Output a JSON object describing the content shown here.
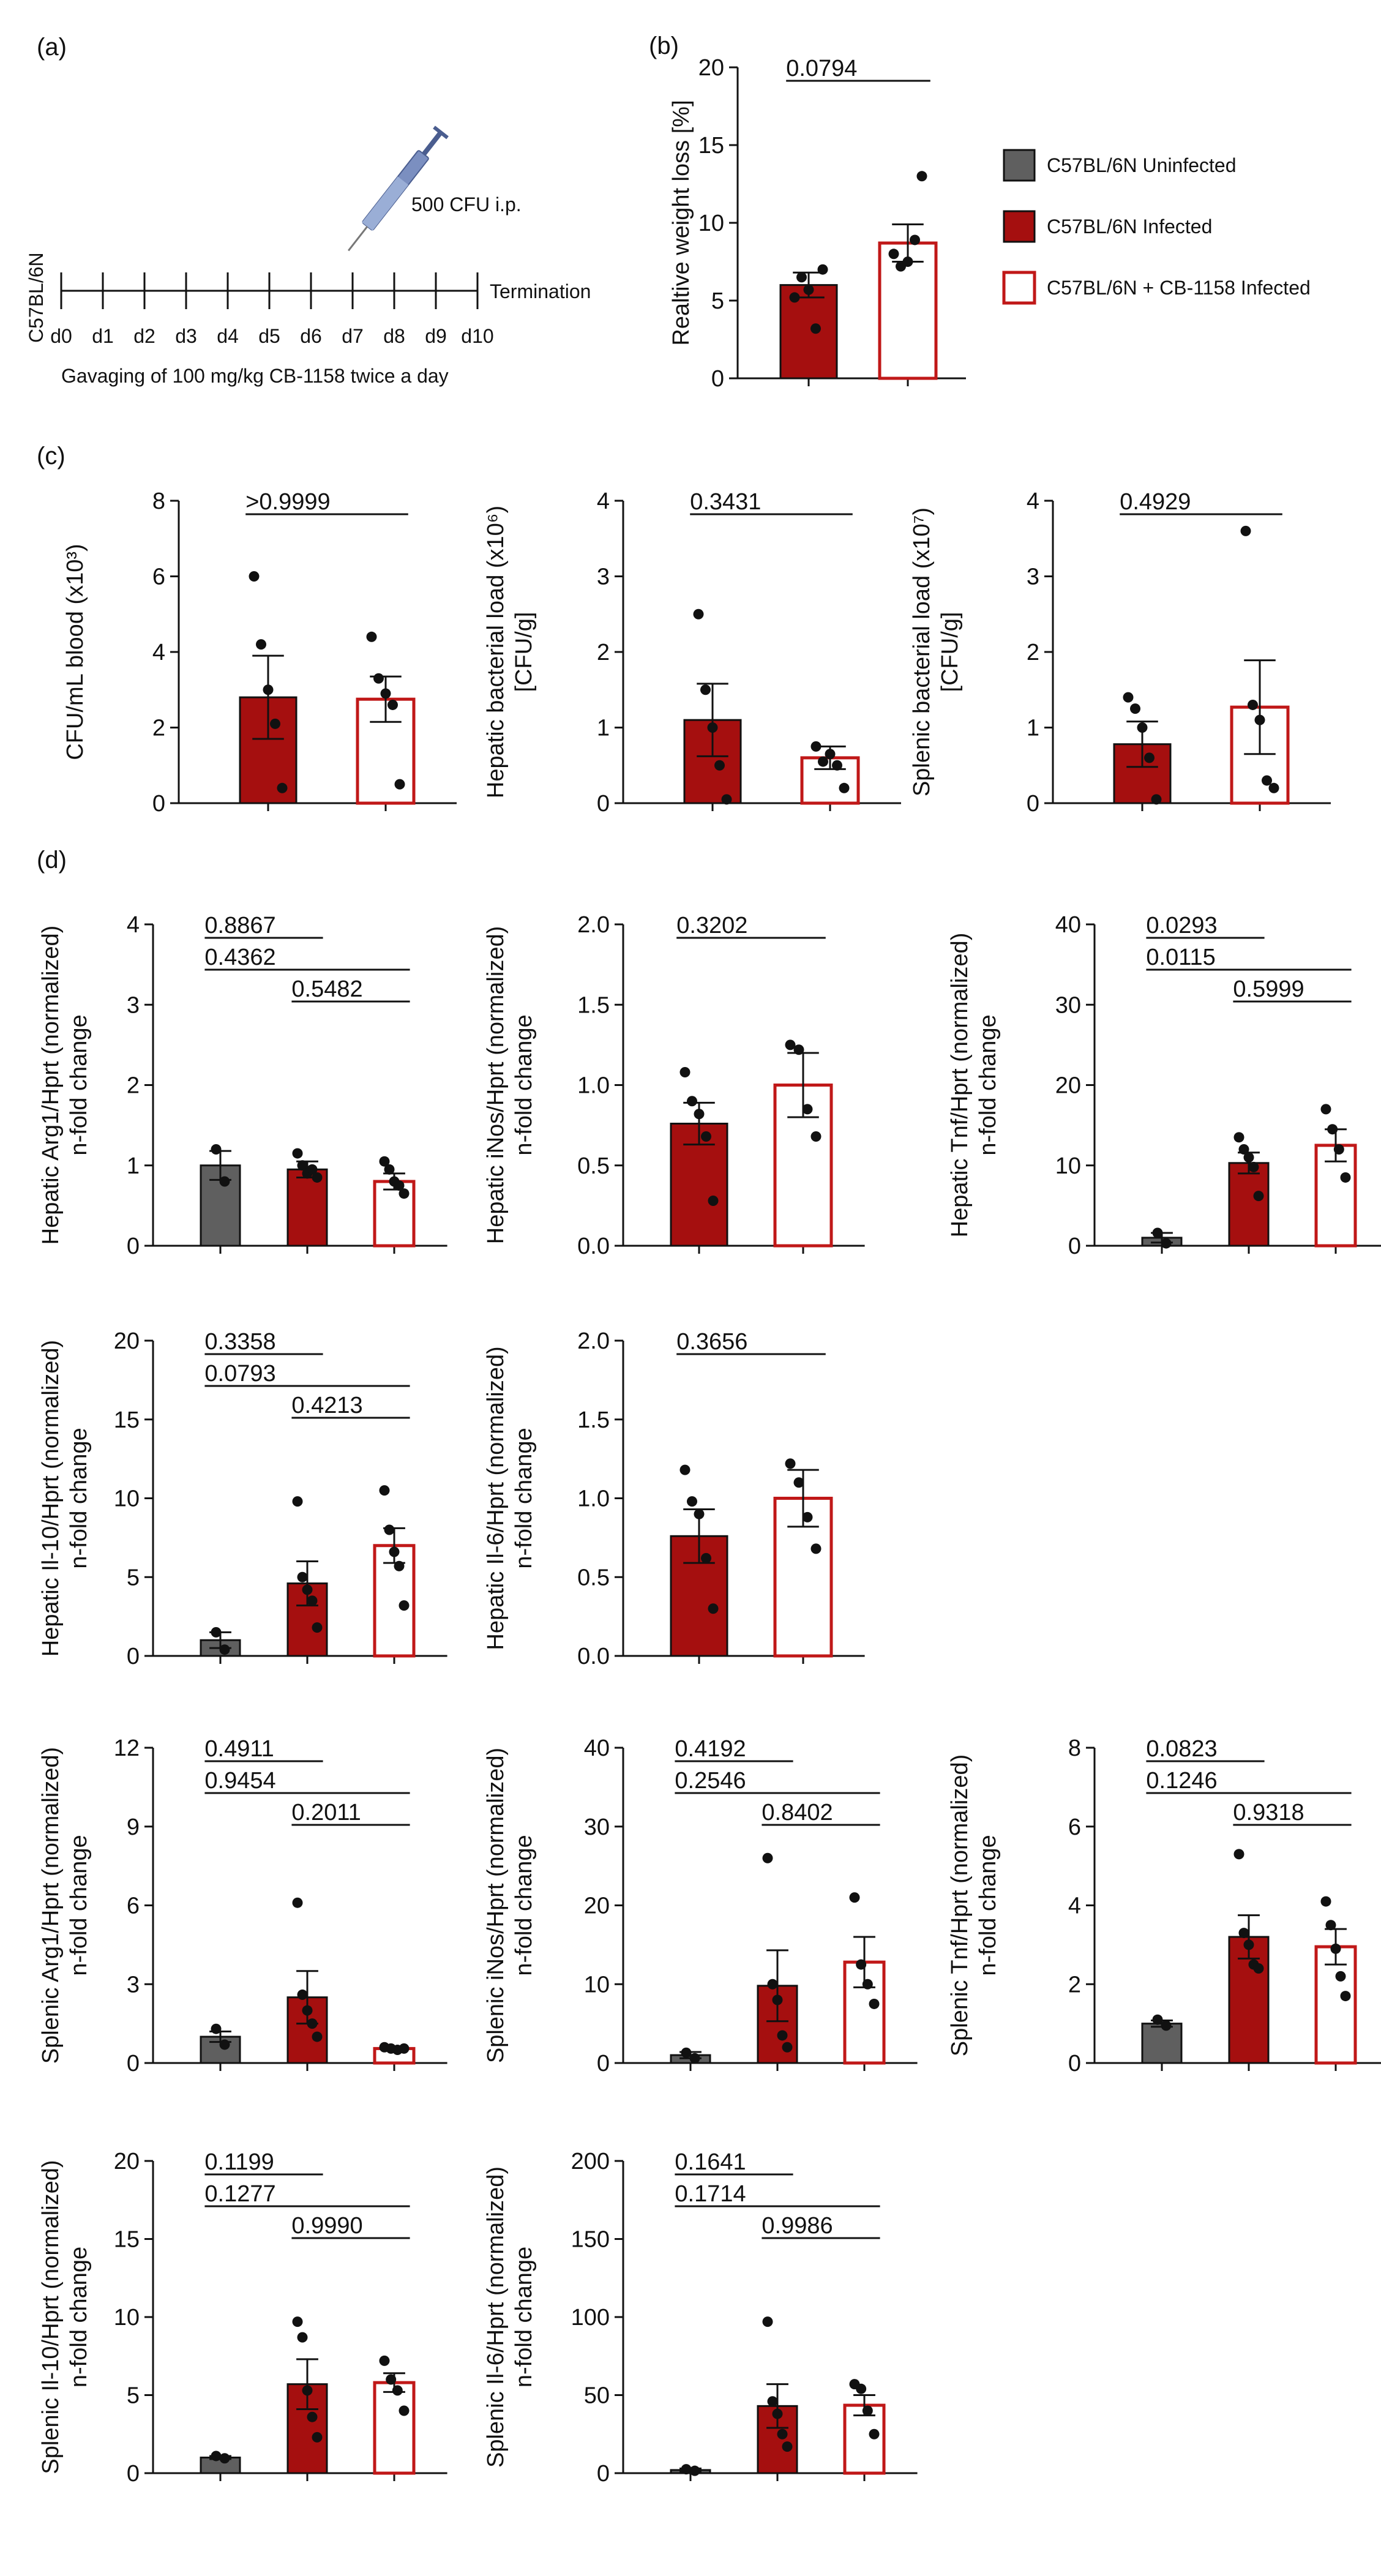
{
  "colors": {
    "uninfected": "#5f5f5f",
    "infected": "#a50f0f",
    "cb1158_edge": "#c01818",
    "axis": "#111111",
    "syringe": "#6a7fb0"
  },
  "legend": [
    {
      "label": "C57BL/6N Uninfected",
      "style": "uninfected"
    },
    {
      "label": "C57BL/6N Infected",
      "style": "infected"
    },
    {
      "label": "C57BL/6N + CB-1158 Infected",
      "style": "cb1158"
    }
  ],
  "timeline": {
    "panel_label": "(a)",
    "strain": "C57BL/6N",
    "days": [
      "d0",
      "d1",
      "d2",
      "d3",
      "d4",
      "d5",
      "d6",
      "d7",
      "d8",
      "d9",
      "d10"
    ],
    "injection": "500 CFU i.p.",
    "end_label": "Termination",
    "treatment": "Gavaging of 100 mg/kg  CB-1158 twice a day",
    "syringe_icon": "syringe-icon"
  },
  "chart_data": [
    {
      "id": "b",
      "panel_label": "(b)",
      "type": "bar",
      "ylabel": [
        "Realtive weight loss [%]"
      ],
      "ylim": [
        0,
        20
      ],
      "yticks": [
        "0",
        "5",
        "10",
        "15",
        "20"
      ],
      "groups": [
        "infected",
        "cb1158"
      ],
      "means": [
        6.0,
        8.7
      ],
      "sems": [
        0.8,
        1.2
      ],
      "points": [
        [
          5.2,
          6.5,
          5.7,
          3.2,
          7.0
        ],
        [
          8.0,
          7.2,
          7.5,
          8.9,
          13.0
        ]
      ],
      "comparisons": [
        {
          "text": "0.0794",
          "from": 0,
          "to": 1,
          "row": 0
        }
      ]
    },
    {
      "id": "c1",
      "panel_label": "(c)",
      "type": "bar",
      "ylabel": [
        "CFU/mL blood  (x10³)"
      ],
      "ylim": [
        0,
        8
      ],
      "yticks": [
        "0",
        "2",
        "4",
        "6",
        "8"
      ],
      "groups": [
        "infected",
        "cb1158"
      ],
      "means": [
        2.8,
        2.75
      ],
      "sems": [
        1.1,
        0.6
      ],
      "points": [
        [
          6.0,
          4.2,
          3.0,
          2.1,
          0.4
        ],
        [
          4.4,
          3.3,
          2.9,
          2.6,
          0.5
        ]
      ],
      "comparisons": [
        {
          "text": ">0.9999",
          "from": 0,
          "to": 1,
          "row": 0
        }
      ]
    },
    {
      "id": "c2",
      "type": "bar",
      "ylabel": [
        "Hepatic bacterial load (x10⁶)",
        "[CFU/g]"
      ],
      "ylim": [
        0,
        4
      ],
      "yticks": [
        "0",
        "1",
        "2",
        "3",
        "4"
      ],
      "groups": [
        "infected",
        "cb1158"
      ],
      "means": [
        1.1,
        0.6
      ],
      "sems": [
        0.48,
        0.15
      ],
      "points": [
        [
          2.5,
          1.5,
          1.0,
          0.5,
          0.05
        ],
        [
          0.75,
          0.55,
          0.65,
          0.5,
          0.2
        ]
      ],
      "comparisons": [
        {
          "text": "0.3431",
          "from": 0,
          "to": 1,
          "row": 0
        }
      ]
    },
    {
      "id": "c3",
      "type": "bar",
      "ylabel": [
        "Splenic bacterial load (x10⁷)",
        "[CFU/g]"
      ],
      "ylim": [
        0,
        4
      ],
      "yticks": [
        "0",
        "1",
        "2",
        "3",
        "4"
      ],
      "groups": [
        "infected",
        "cb1158"
      ],
      "means": [
        0.78,
        1.27
      ],
      "sems": [
        0.3,
        0.62
      ],
      "points": [
        [
          1.4,
          1.25,
          1.0,
          0.6,
          0.05
        ],
        [
          3.6,
          1.3,
          1.1,
          0.3,
          0.2
        ]
      ],
      "comparisons": [
        {
          "text": "0.4929",
          "from": 0,
          "to": 1,
          "row": 0
        }
      ]
    },
    {
      "id": "d1",
      "panel_label": "(d)",
      "type": "bar",
      "ylabel": [
        "Hepatic Arg1/Hprt (normalized)",
        "n-fold change"
      ],
      "ylim": [
        0,
        4
      ],
      "yticks": [
        "0",
        "1",
        "2",
        "3",
        "4"
      ],
      "groups": [
        "uninfected",
        "infected",
        "cb1158"
      ],
      "means": [
        1.0,
        0.95,
        0.8
      ],
      "sems": [
        0.18,
        0.1,
        0.1
      ],
      "points": [
        [
          1.2,
          0.8
        ],
        [
          1.15,
          1.0,
          0.9,
          0.95,
          0.85
        ],
        [
          1.05,
          0.95,
          0.8,
          0.75,
          0.65
        ]
      ],
      "comparisons": [
        {
          "text": "0.8867",
          "from": 0,
          "to": 1,
          "row": 0
        },
        {
          "text": "0.4362",
          "from": 0,
          "to": 2,
          "row": 1
        },
        {
          "text": "0.5482",
          "from": 1,
          "to": 2,
          "row": 2
        }
      ]
    },
    {
      "id": "d2",
      "type": "bar",
      "ylabel": [
        "Hepatic iNos/Hprt (normalized)",
        "n-fold change"
      ],
      "ylim": [
        0,
        2
      ],
      "yticks": [
        "0.0",
        "0.5",
        "1.0",
        "1.5",
        "2.0"
      ],
      "groups": [
        "infected",
        "cb1158"
      ],
      "means": [
        0.76,
        1.0
      ],
      "sems": [
        0.13,
        0.2
      ],
      "points": [
        [
          1.08,
          0.9,
          0.82,
          0.68,
          0.28
        ],
        [
          1.25,
          1.22,
          0.85,
          0.68
        ]
      ],
      "comparisons": [
        {
          "text": "0.3202",
          "from": 0,
          "to": 1,
          "row": 0
        }
      ]
    },
    {
      "id": "d3",
      "type": "bar",
      "ylabel": [
        "Hepatic Tnf/Hprt (normalized)",
        "n-fold change"
      ],
      "ylim": [
        0,
        40
      ],
      "yticks": [
        "0",
        "10",
        "20",
        "30",
        "40"
      ],
      "groups": [
        "uninfected",
        "infected",
        "cb1158"
      ],
      "means": [
        1.0,
        10.3,
        12.5
      ],
      "sems": [
        0.6,
        1.3,
        2.0
      ],
      "points": [
        [
          1.6,
          0.3
        ],
        [
          13.5,
          12.0,
          11.0,
          9.8,
          6.2
        ],
        [
          17.0,
          14.5,
          12.0,
          8.5
        ]
      ],
      "comparisons": [
        {
          "text": "0.0293",
          "from": 0,
          "to": 1,
          "row": 0
        },
        {
          "text": "0.0115",
          "from": 0,
          "to": 2,
          "row": 1
        },
        {
          "text": "0.5999",
          "from": 1,
          "to": 2,
          "row": 2
        }
      ]
    },
    {
      "id": "d4",
      "type": "bar",
      "ylabel": [
        "Hepatic Il-10/Hprt (normalized)",
        "n-fold change"
      ],
      "ylim": [
        0,
        20
      ],
      "yticks": [
        "0",
        "5",
        "10",
        "15",
        "20"
      ],
      "groups": [
        "uninfected",
        "infected",
        "cb1158"
      ],
      "means": [
        1.0,
        4.6,
        7.0
      ],
      "sems": [
        0.5,
        1.4,
        1.1
      ],
      "points": [
        [
          1.5,
          0.4
        ],
        [
          9.8,
          5.0,
          4.2,
          3.5,
          1.8
        ],
        [
          10.5,
          8.0,
          6.6,
          5.7,
          3.2
        ]
      ],
      "comparisons": [
        {
          "text": "0.3358",
          "from": 0,
          "to": 1,
          "row": 0
        },
        {
          "text": "0.0793",
          "from": 0,
          "to": 2,
          "row": 1
        },
        {
          "text": "0.4213",
          "from": 1,
          "to": 2,
          "row": 2
        }
      ]
    },
    {
      "id": "d5",
      "type": "bar",
      "ylabel": [
        "Hepatic Il-6/Hprt (normalized)",
        "n-fold change"
      ],
      "ylim": [
        0,
        2
      ],
      "yticks": [
        "0.0",
        "0.5",
        "1.0",
        "1.5",
        "2.0"
      ],
      "groups": [
        "infected",
        "cb1158"
      ],
      "means": [
        0.76,
        1.0
      ],
      "sems": [
        0.17,
        0.18
      ],
      "points": [
        [
          1.18,
          0.98,
          0.9,
          0.62,
          0.3
        ],
        [
          1.22,
          1.1,
          0.88,
          0.68
        ]
      ],
      "comparisons": [
        {
          "text": "0.3656",
          "from": 0,
          "to": 1,
          "row": 0
        }
      ]
    },
    {
      "id": "d6",
      "type": "bar",
      "ylabel": [
        "Splenic Arg1/Hprt (normalized)",
        "n-fold change"
      ],
      "ylim": [
        0,
        12
      ],
      "yticks": [
        "0",
        "3",
        "6",
        "9",
        "12"
      ],
      "groups": [
        "uninfected",
        "infected",
        "cb1158"
      ],
      "means": [
        1.0,
        2.5,
        0.55
      ],
      "sems": [
        0.2,
        1.0,
        0.05
      ],
      "points": [
        [
          1.3,
          0.7
        ],
        [
          6.1,
          2.6,
          2.0,
          1.5,
          1.0
        ],
        [
          0.6,
          0.55,
          0.5,
          0.55
        ]
      ],
      "comparisons": [
        {
          "text": "0.4911",
          "from": 0,
          "to": 1,
          "row": 0
        },
        {
          "text": "0.9454",
          "from": 0,
          "to": 2,
          "row": 1
        },
        {
          "text": "0.2011",
          "from": 1,
          "to": 2,
          "row": 2
        }
      ]
    },
    {
      "id": "d7",
      "type": "bar",
      "ylabel": [
        "Splenic iNos/Hprt (normalized)",
        "n-fold change"
      ],
      "ylim": [
        0,
        40
      ],
      "yticks": [
        "0",
        "10",
        "20",
        "30",
        "40"
      ],
      "groups": [
        "uninfected",
        "infected",
        "cb1158"
      ],
      "means": [
        1.0,
        9.8,
        12.8
      ],
      "sems": [
        0.4,
        4.5,
        3.2
      ],
      "points": [
        [
          1.3,
          0.6
        ],
        [
          26.0,
          10.0,
          8.0,
          3.5,
          2.0
        ],
        [
          21.0,
          12.5,
          10.0,
          7.5
        ]
      ],
      "comparisons": [
        {
          "text": "0.4192",
          "from": 0,
          "to": 1,
          "row": 0
        },
        {
          "text": "0.2546",
          "from": 0,
          "to": 2,
          "row": 1
        },
        {
          "text": "0.8402",
          "from": 1,
          "to": 2,
          "row": 2
        }
      ]
    },
    {
      "id": "d8",
      "type": "bar",
      "ylabel": [
        "Splenic Tnf/Hprt (normalized)",
        "n-fold change"
      ],
      "ylim": [
        0,
        8
      ],
      "yticks": [
        "0",
        "2",
        "4",
        "6",
        "8"
      ],
      "groups": [
        "uninfected",
        "infected",
        "cb1158"
      ],
      "means": [
        1.0,
        3.2,
        2.95
      ],
      "sems": [
        0.08,
        0.55,
        0.45
      ],
      "points": [
        [
          1.1,
          0.95
        ],
        [
          5.3,
          3.3,
          3.0,
          2.5,
          2.4
        ],
        [
          4.1,
          3.5,
          2.9,
          2.2,
          1.7
        ]
      ],
      "comparisons": [
        {
          "text": "0.0823",
          "from": 0,
          "to": 1,
          "row": 0
        },
        {
          "text": "0.1246",
          "from": 0,
          "to": 2,
          "row": 1
        },
        {
          "text": "0.9318",
          "from": 1,
          "to": 2,
          "row": 2
        }
      ]
    },
    {
      "id": "d9",
      "type": "bar",
      "ylabel": [
        "Splenic Il-10/Hprt (normalized)",
        "n-fold change"
      ],
      "ylim": [
        0,
        20
      ],
      "yticks": [
        "0",
        "5",
        "10",
        "15",
        "20"
      ],
      "groups": [
        "uninfected",
        "infected",
        "cb1158"
      ],
      "means": [
        1.0,
        5.7,
        5.8
      ],
      "sems": [
        0.1,
        1.6,
        0.6
      ],
      "points": [
        [
          1.1,
          0.95
        ],
        [
          9.7,
          8.7,
          5.3,
          3.6,
          2.3
        ],
        [
          7.2,
          6.0,
          5.3,
          4.0
        ]
      ],
      "comparisons": [
        {
          "text": "0.1199",
          "from": 0,
          "to": 1,
          "row": 0
        },
        {
          "text": "0.1277",
          "from": 0,
          "to": 2,
          "row": 1
        },
        {
          "text": "0.9990",
          "from": 1,
          "to": 2,
          "row": 2
        }
      ]
    },
    {
      "id": "d10",
      "type": "bar",
      "ylabel": [
        "Splenic Il-6/Hprt (normalized)",
        "n-fold change"
      ],
      "ylim": [
        0,
        200
      ],
      "yticks": [
        "0",
        "50",
        "100",
        "150",
        "200"
      ],
      "groups": [
        "uninfected",
        "infected",
        "cb1158"
      ],
      "means": [
        2.0,
        43.0,
        43.5
      ],
      "sems": [
        1.0,
        14.0,
        6.5
      ],
      "points": [
        [
          2.5,
          1.5
        ],
        [
          97.0,
          46.0,
          38.0,
          25.0,
          17.0
        ],
        [
          57.0,
          54.0,
          40.0,
          25.0
        ]
      ],
      "comparisons": [
        {
          "text": "0.1641",
          "from": 0,
          "to": 1,
          "row": 0
        },
        {
          "text": "0.1714",
          "from": 0,
          "to": 2,
          "row": 1
        },
        {
          "text": "0.9986",
          "from": 1,
          "to": 2,
          "row": 2
        }
      ]
    }
  ]
}
